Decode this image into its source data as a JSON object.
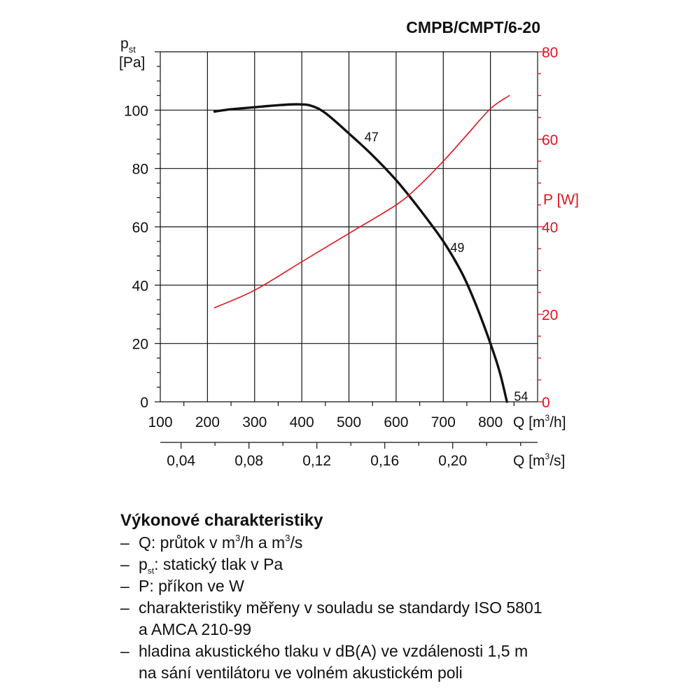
{
  "chart_data": {
    "type": "line",
    "title": "CMPB/CMPT/6-20",
    "x": {
      "label": "Q [m³/h]",
      "range": [
        100,
        900
      ],
      "ticks": [
        100,
        200,
        300,
        400,
        500,
        600,
        700,
        800
      ]
    },
    "x2": {
      "label": "Q [m³/s]",
      "ticks": [
        "0,04",
        "0,08",
        "0,12",
        "0,16",
        "0,20"
      ],
      "tick_values": [
        0.04,
        0.08,
        0.12,
        0.16,
        0.2
      ]
    },
    "y_left": {
      "label_main": "p",
      "label_sub": "st",
      "unit": "[Pa]",
      "range": [
        0,
        120
      ],
      "ticks": [
        0,
        20,
        40,
        60,
        80,
        100
      ]
    },
    "y_right": {
      "label": "P [W]",
      "range": [
        0,
        80
      ],
      "ticks": [
        0,
        20,
        40,
        60,
        80
      ],
      "color": "#e0141e"
    },
    "grid": true,
    "series": [
      {
        "axis": "left",
        "color": "#111111",
        "values": [
          [
            215,
            99.5
          ],
          [
            250,
            100.3
          ],
          [
            300,
            101
          ],
          [
            350,
            101.7
          ],
          [
            390,
            102
          ],
          [
            420,
            101.5
          ],
          [
            450,
            99
          ],
          [
            500,
            92
          ],
          [
            550,
            84.5
          ],
          [
            600,
            76
          ],
          [
            650,
            66
          ],
          [
            700,
            55
          ],
          [
            740,
            44
          ],
          [
            770,
            33
          ],
          [
            800,
            20
          ],
          [
            820,
            10
          ],
          [
            835,
            0
          ]
        ],
        "labels": [
          {
            "text": "47",
            "x": 533,
            "y": 91
          },
          {
            "text": "49",
            "x": 715,
            "y": 53
          },
          {
            "text": "54",
            "x": 850,
            "y": 2
          }
        ]
      },
      {
        "axis": "right",
        "color": "#e0141e",
        "values": [
          [
            215,
            21.5
          ],
          [
            300,
            25.5
          ],
          [
            400,
            32
          ],
          [
            500,
            38.5
          ],
          [
            600,
            45
          ],
          [
            650,
            49.5
          ],
          [
            700,
            55
          ],
          [
            750,
            61
          ],
          [
            800,
            67
          ],
          [
            840,
            70
          ]
        ]
      }
    ]
  },
  "legend": {
    "heading": "Výkonové charakteristiky",
    "dash": "–",
    "items": [
      {
        "pre": "Q: průtok v m",
        "sup": "3",
        "post": "/h a m",
        "sup2": "3",
        "post2": "/s"
      },
      {
        "pre": "p",
        "sub": "st",
        "post": ": statický tlak v Pa"
      },
      {
        "pre": "P: příkon ve W"
      },
      {
        "pre": "charakteristiky měřeny v souladu se standardy ISO 5801",
        "line2": "a AMCA 210-99"
      },
      {
        "pre": "hladina akustického tlaku v dB(A) ve vzdálenosti 1,5 m",
        "line2": "na sání ventilátoru ve volném akustickém poli"
      }
    ]
  }
}
